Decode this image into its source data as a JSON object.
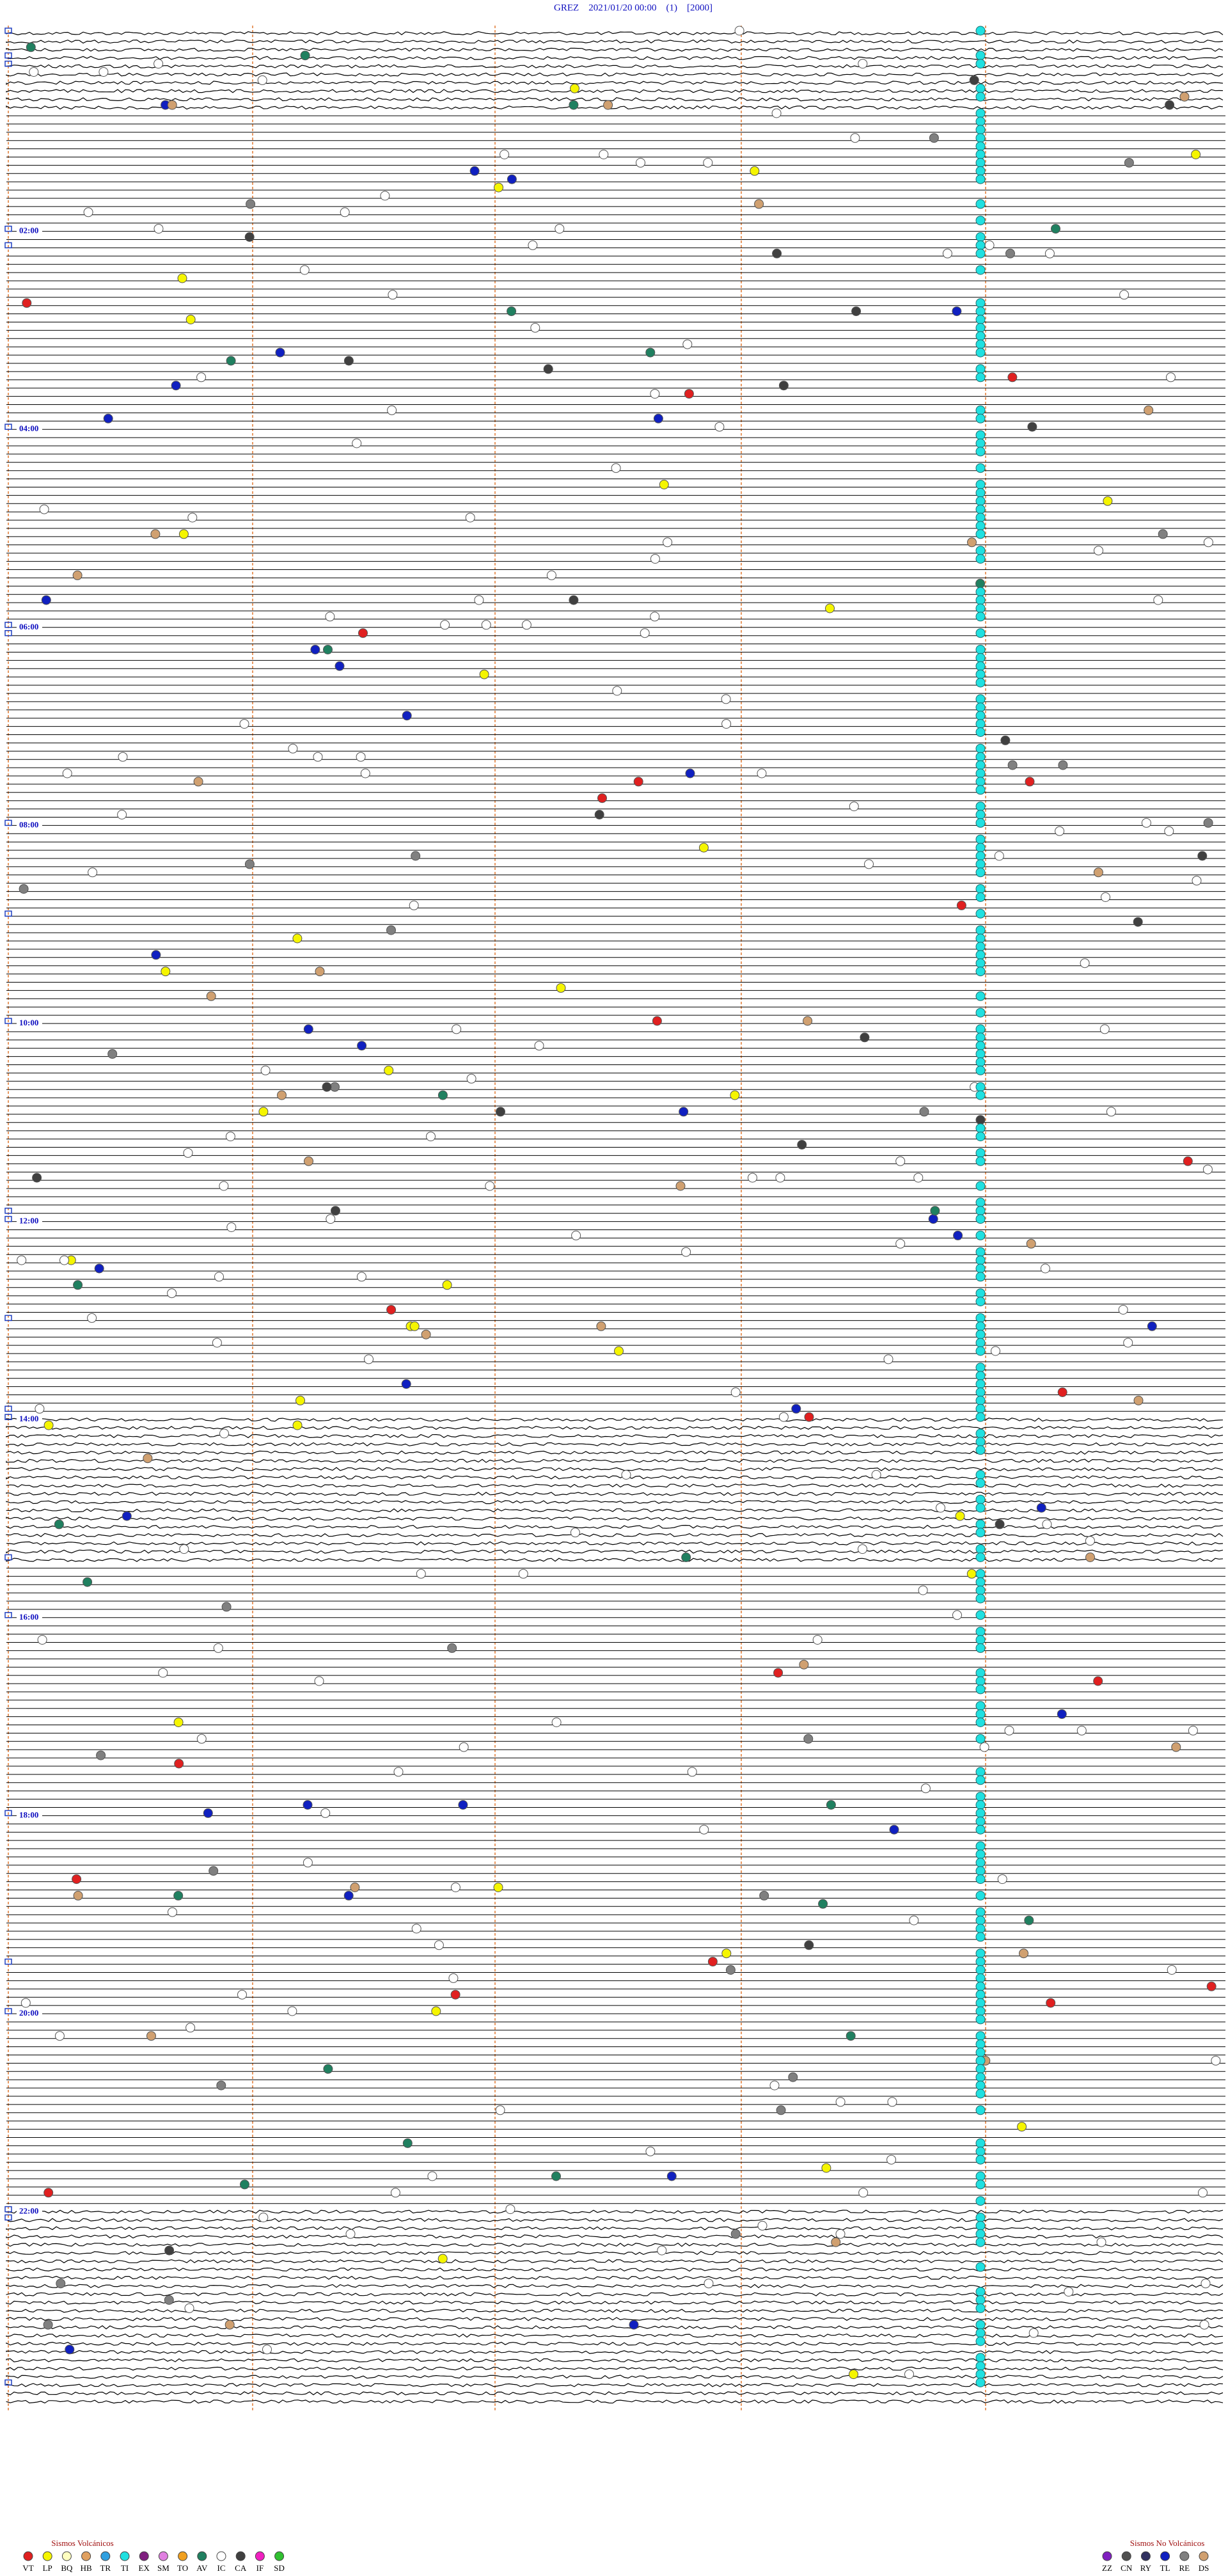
{
  "header": {
    "title": "GREZ    2021/01/20 00:00    (1)    [2000]"
  },
  "time_labels": [
    "02:00",
    "04:00",
    "06:00",
    "08:00",
    "10:00",
    "12:00",
    "14:00",
    "16:00",
    "18:00",
    "20:00",
    "22:00"
  ],
  "legend": {
    "volcanic": {
      "title": "Sismos Volcánicos",
      "items": [
        {
          "code": "VT",
          "color": "#e02020"
        },
        {
          "code": "LP",
          "color": "#f5f500"
        },
        {
          "code": "BQ",
          "color": "#ffffc0"
        },
        {
          "code": "HB",
          "color": "#e0a060"
        },
        {
          "code": "TR",
          "color": "#30a0e0"
        },
        {
          "code": "TI",
          "color": "#20e0e0"
        },
        {
          "code": "EX",
          "color": "#802080"
        },
        {
          "code": "SM",
          "color": "#e080e0"
        },
        {
          "code": "TO",
          "color": "#f0a020"
        },
        {
          "code": "AV",
          "color": "#208060"
        },
        {
          "code": "IC",
          "color": "#ffffff"
        },
        {
          "code": "CA",
          "color": "#404040"
        },
        {
          "code": "IF",
          "color": "#f020c0"
        },
        {
          "code": "SD",
          "color": "#30c030"
        }
      ]
    },
    "non_volcanic": {
      "title": "Sismos No Volcánicos",
      "items": [
        {
          "code": "ZZ",
          "color": "#8020c0"
        },
        {
          "code": "CN",
          "color": "#505050"
        },
        {
          "code": "RY",
          "color": "#303060"
        },
        {
          "code": "TL",
          "color": "#1020c0"
        },
        {
          "code": "RE",
          "color": "#808080"
        },
        {
          "code": "DS",
          "color": "#d0a070"
        }
      ]
    }
  }
}
